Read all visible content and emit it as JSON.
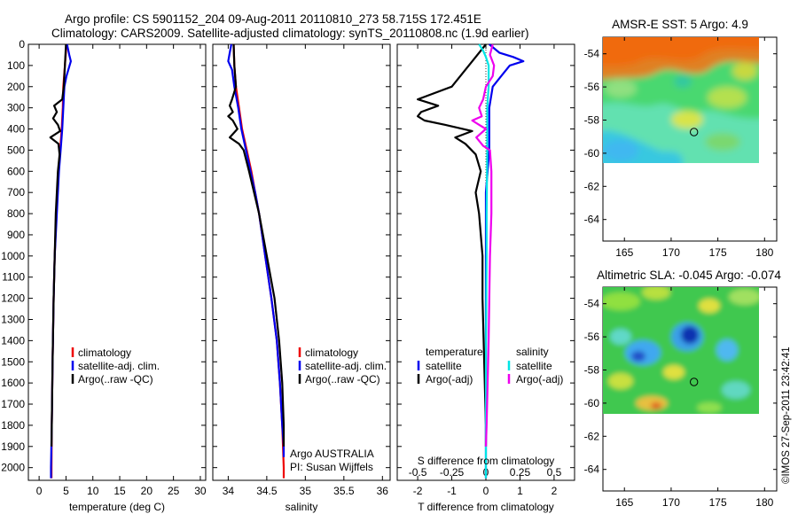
{
  "title_line1": "Argo profile: CS 5901152_204 09-Aug-2011 20110810_273 58.715S 172.451E",
  "title_line2": "Climatology: CARS2009. Satellite-adjusted climatology: synTS_20110808.nc (1.9d earlier)",
  "imos_stamp": "©IMOS 27-Sep-2011 23:42:41",
  "colors": {
    "climatology": "#ee0000",
    "satellite": "#0000ee",
    "argo": "#000000",
    "satellite_s": "#00e5e5",
    "argo_s": "#ee00ee"
  },
  "chart_data": [
    {
      "id": "temperature",
      "type": "line",
      "xlabel": "temperature (deg C)",
      "xlim": [
        -2,
        31
      ],
      "ylim": [
        2060,
        0
      ],
      "xticks": [
        "0",
        "5",
        "10",
        "15",
        "20",
        "25",
        "30"
      ],
      "xtick_values": [
        0,
        5,
        10,
        15,
        20,
        25,
        30
      ],
      "yticks": [
        "0",
        "100",
        "200",
        "300",
        "400",
        "500",
        "600",
        "700",
        "800",
        "900",
        "1000",
        "1100",
        "1200",
        "1300",
        "1400",
        "1500",
        "1600",
        "1700",
        "1800",
        "1900",
        "2000"
      ],
      "ytick_values": [
        0,
        100,
        200,
        300,
        400,
        500,
        600,
        700,
        800,
        900,
        1000,
        1100,
        1200,
        1300,
        1400,
        1500,
        1600,
        1700,
        1800,
        1900,
        2000
      ],
      "legend": [
        "climatology",
        "satellite-adj. clim.",
        "Argo(..raw -QC)"
      ],
      "series": [
        {
          "key": "climatology",
          "depth": [
            0,
            100,
            200,
            300,
            400,
            500,
            600,
            800,
            1000,
            1200,
            1500,
            1800,
            2000,
            2050
          ],
          "values": [
            5.1,
            4.8,
            4.5,
            4.4,
            4.2,
            3.9,
            3.6,
            3.2,
            2.9,
            2.7,
            2.5,
            2.35,
            2.3,
            2.3
          ]
        },
        {
          "key": "satellite",
          "depth": [
            0,
            50,
            80,
            150,
            200,
            300,
            400,
            500,
            600,
            800,
            1000,
            1200,
            1500,
            1800,
            2000,
            2050
          ],
          "values": [
            5.2,
            5.6,
            5.9,
            5.1,
            4.7,
            4.5,
            4.3,
            4.0,
            3.7,
            3.3,
            2.9,
            2.7,
            2.5,
            2.35,
            2.2,
            2.2
          ]
        },
        {
          "key": "argo",
          "depth": [
            0,
            100,
            200,
            260,
            290,
            320,
            350,
            380,
            410,
            440,
            470,
            520,
            600,
            800,
            1000,
            1200,
            1500,
            1800,
            1900
          ],
          "values": [
            5.0,
            4.8,
            4.6,
            4.3,
            2.8,
            3.3,
            2.6,
            3.5,
            3.9,
            2.1,
            3.6,
            3.8,
            3.5,
            3.1,
            2.9,
            2.7,
            2.5,
            2.35,
            2.3
          ]
        }
      ]
    },
    {
      "id": "salinity",
      "type": "line",
      "xlabel": "salinity",
      "xlim": [
        33.8,
        36.1
      ],
      "ylim": [
        2060,
        0
      ],
      "xticks": [
        "34",
        "34.5",
        "35",
        "35.5",
        "36"
      ],
      "xtick_values": [
        34,
        34.5,
        35,
        35.5,
        36
      ],
      "legend": [
        "climatology",
        "satellite-adj. clim.",
        "Argo(..raw -QC)"
      ],
      "annotation": [
        "Argo AUSTRALIA",
        "PI: Susan Wijffels"
      ],
      "series": [
        {
          "key": "climatology",
          "depth": [
            0,
            100,
            200,
            300,
            400,
            500,
            600,
            700,
            800,
            1000,
            1200,
            1400,
            1600,
            1800,
            2000,
            2050
          ],
          "values": [
            34.07,
            34.08,
            34.1,
            34.14,
            34.18,
            34.24,
            34.3,
            34.35,
            34.4,
            34.48,
            34.56,
            34.63,
            34.67,
            34.7,
            34.72,
            34.72
          ]
        },
        {
          "key": "satellite",
          "depth": [
            0,
            40,
            80,
            120,
            200,
            300,
            400,
            500,
            600,
            700,
            800,
            1000,
            1200,
            1400,
            1600,
            1800,
            1900,
            1950
          ],
          "values": [
            34.04,
            34.02,
            34.0,
            34.05,
            34.08,
            34.13,
            34.17,
            34.23,
            34.29,
            34.35,
            34.4,
            34.48,
            34.56,
            34.63,
            34.67,
            34.7,
            34.72,
            34.72
          ]
        },
        {
          "key": "argo",
          "depth": [
            0,
            100,
            200,
            260,
            290,
            320,
            340,
            360,
            400,
            440,
            470,
            500,
            600,
            800,
            1000,
            1200,
            1400,
            1600,
            1800,
            1900
          ],
          "values": [
            34.07,
            34.08,
            34.1,
            34.05,
            34.02,
            34.06,
            34.0,
            34.06,
            34.12,
            34.02,
            34.14,
            34.2,
            34.27,
            34.4,
            34.5,
            34.6,
            34.66,
            34.7,
            34.72,
            34.72
          ]
        }
      ]
    },
    {
      "id": "difference",
      "type": "line",
      "xlabel": "T difference from climatology",
      "xlim": [
        -2.6,
        2.6
      ],
      "ylim": [
        2060,
        0
      ],
      "xticks": [
        "-2",
        "-1",
        "0",
        "1",
        "2"
      ],
      "xtick_values": [
        -2,
        -1,
        0,
        1,
        2
      ],
      "secondary_xlabel": "S difference from climatology",
      "secondary_xticks": [
        "-0.5",
        "-0.25",
        "0",
        "0.25",
        "0.5"
      ],
      "secondary_xtick_values": [
        -0.5,
        -0.25,
        0,
        0.25,
        0.5
      ],
      "secondary_scale": 4,
      "legend_left_title": "temperature",
      "legend_right_title": "salinity",
      "legend": [
        "satellite",
        "Argo(-adj)",
        "satellite",
        "Argo(-adj)"
      ],
      "series": [
        {
          "key": "satellite",
          "quantity": "T",
          "depth": [
            0,
            40,
            60,
            80,
            100,
            140,
            200,
            300,
            500,
            700,
            1000,
            1500,
            2000,
            2050
          ],
          "values": [
            0.1,
            0.4,
            0.8,
            1.1,
            0.7,
            0.5,
            0.2,
            0.1,
            0.1,
            0.0,
            0.0,
            0.0,
            0.0,
            0.0
          ]
        },
        {
          "key": "argo",
          "quantity": "T",
          "depth": [
            0,
            60,
            120,
            200,
            260,
            290,
            320,
            340,
            360,
            380,
            410,
            440,
            470,
            520,
            600,
            700,
            800,
            1000,
            1200,
            1500,
            1800,
            1900
          ],
          "values": [
            0.0,
            -0.3,
            -0.6,
            -1.0,
            -2.0,
            -1.4,
            -1.9,
            -2.0,
            -1.8,
            -1.2,
            -0.4,
            -0.9,
            -0.6,
            -0.3,
            -0.15,
            -0.3,
            -0.2,
            -0.1,
            -0.1,
            -0.05,
            0.0,
            0.0
          ]
        },
        {
          "key": "satellite_s",
          "quantity": "S",
          "depth": [
            0,
            30,
            60,
            100,
            200,
            300,
            500,
            800,
            1000,
            1500,
            2000,
            2050
          ],
          "values": [
            -0.05,
            -0.02,
            0.0,
            0.02,
            0.02,
            0.01,
            0.01,
            0.005,
            0.005,
            0.0,
            0.0,
            0.0
          ]
        },
        {
          "key": "argo_s",
          "quantity": "S",
          "depth": [
            0,
            50,
            100,
            150,
            200,
            260,
            300,
            340,
            360,
            380,
            400,
            440,
            480,
            500,
            600,
            800,
            1000,
            1400,
            1800,
            1900
          ],
          "values": [
            0.05,
            0.03,
            0.06,
            0.05,
            0.0,
            -0.02,
            -0.05,
            -0.03,
            -0.1,
            -0.05,
            0.0,
            -0.07,
            -0.02,
            0.03,
            0.04,
            0.04,
            0.03,
            0.02,
            0.005,
            0.0
          ]
        }
      ]
    },
    {
      "id": "sst_map",
      "type": "heatmap",
      "title": "AMSR-E SST: 5 Argo: 4.9",
      "xticks": [
        "165",
        "170",
        "175",
        "180"
      ],
      "xtick_values": [
        165,
        170,
        175,
        180
      ],
      "yticks": [
        "-54",
        "-56",
        "-58",
        "-60",
        "-62",
        "-64"
      ],
      "ytick_values": [
        -54,
        -56,
        -58,
        -60,
        -62,
        -64
      ],
      "xlim": [
        162.7,
        181.3
      ],
      "ylim": [
        -65.3,
        -53.0
      ],
      "data_extent": {
        "lon": [
          162.7,
          180.0
        ],
        "lat": [
          -60.15,
          -53.0
        ]
      },
      "float_position": {
        "lon": 172.45,
        "lat": -58.72
      }
    },
    {
      "id": "sla_map",
      "type": "heatmap",
      "title": "Altimetric SLA: -0.045 Argo: -0.074",
      "xticks": [
        "165",
        "170",
        "175",
        "180"
      ],
      "xtick_values": [
        165,
        170,
        175,
        180
      ],
      "yticks": [
        "-54",
        "-56",
        "-58",
        "-60",
        "-62",
        "-64"
      ],
      "ytick_values": [
        -54,
        -56,
        -58,
        -60,
        -62,
        -64
      ],
      "xlim": [
        162.7,
        181.3
      ],
      "ylim": [
        -65.3,
        -53.0
      ],
      "data_extent": {
        "lon": [
          162.7,
          180.0
        ],
        "lat": [
          -60.15,
          -53.0
        ]
      },
      "float_position": {
        "lon": 172.45,
        "lat": -58.72
      }
    }
  ]
}
